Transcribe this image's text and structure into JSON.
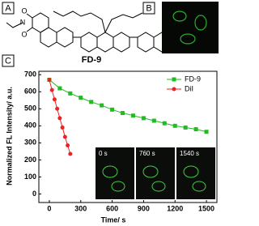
{
  "panels": {
    "a": "A",
    "b": "B",
    "c": "C"
  },
  "structure": {
    "compound": "FD-9",
    "atoms": [
      "O",
      "N",
      "O"
    ]
  },
  "chart_data": {
    "type": "scatter",
    "xlabel": "Time/ s",
    "ylabel": "Normalized FL Intensity/ a.u.",
    "xlim": [
      -100,
      1600
    ],
    "xticks": [
      0,
      300,
      600,
      900,
      1200,
      1500
    ],
    "ylim": [
      -50,
      720
    ],
    "yticks": [
      0,
      100,
      200,
      300,
      400,
      500,
      600,
      700
    ],
    "legend": "upper right",
    "series": [
      {
        "name": "FD-9",
        "color": "#22bb22",
        "marker": "square",
        "x": [
          0,
          100,
          200,
          300,
          400,
          500,
          600,
          700,
          800,
          900,
          1000,
          1100,
          1200,
          1300,
          1400,
          1500
        ],
        "values": [
          670,
          620,
          590,
          565,
          540,
          520,
          495,
          475,
          460,
          445,
          430,
          415,
          400,
          390,
          380,
          365
        ]
      },
      {
        "name": "DiI",
        "color": "#ee2222",
        "marker": "circle",
        "x": [
          0,
          25,
          50,
          75,
          100,
          125,
          150,
          175,
          200
        ],
        "values": [
          670,
          610,
          555,
          500,
          445,
          390,
          335,
          285,
          235
        ]
      }
    ],
    "inset_labels": [
      "0 s",
      "760 s",
      "1540 s"
    ]
  }
}
